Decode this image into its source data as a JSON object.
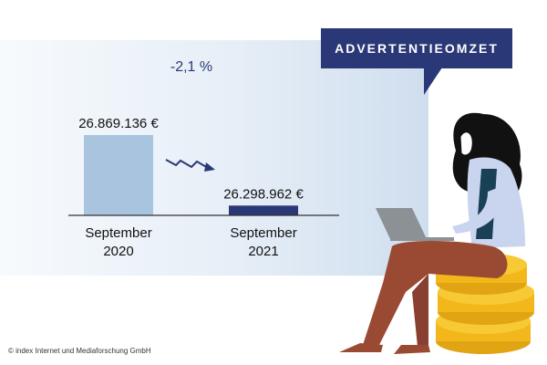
{
  "badge": {
    "label": "ADVERTENTIEOMZET"
  },
  "delta_label": "-2,1 %",
  "footer": "© index Internet und Mediaforschung GmbH",
  "colors": {
    "navy": "#2b3877",
    "light_bar": "#a9c4df",
    "panel": "#dde8f3"
  },
  "chart_data": {
    "type": "bar",
    "categories": [
      "September\n2020",
      "September\n2021"
    ],
    "values": [
      26869136,
      26298962
    ],
    "value_labels": [
      "26.869.136 €",
      "26.298.962 €"
    ],
    "colors": [
      "#a9c4df",
      "#2b3877"
    ],
    "annotation": "-2,1 %",
    "xlabel": "",
    "ylabel": ""
  }
}
